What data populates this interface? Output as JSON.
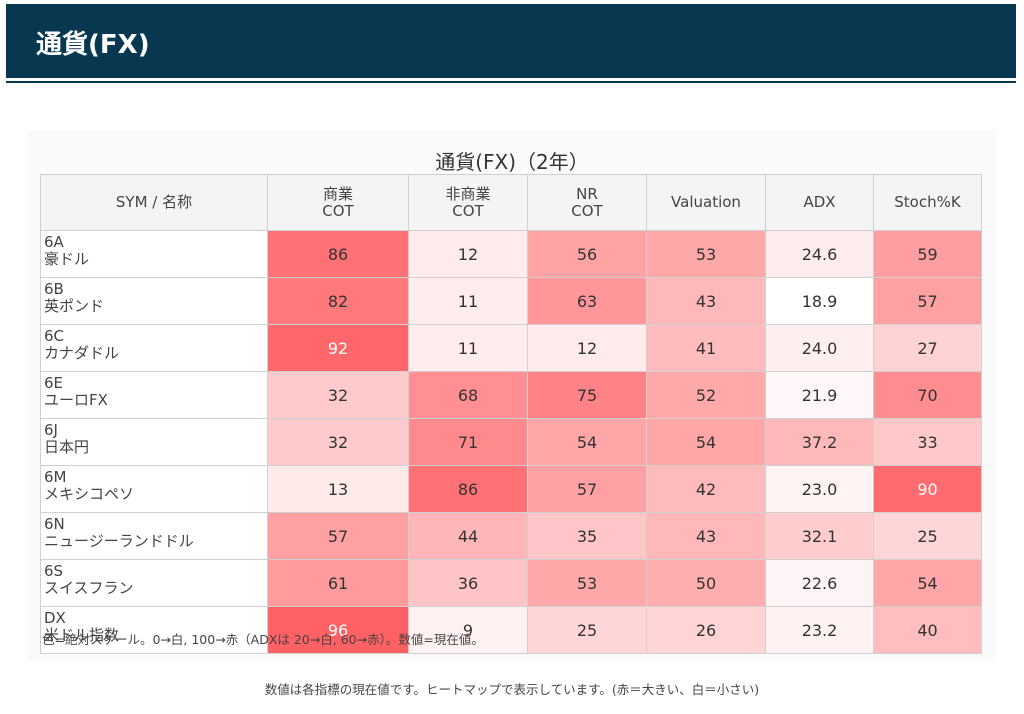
{
  "header": {
    "title": "通貨(FX)"
  },
  "chart_data": {
    "type": "heatmap",
    "title": "通貨(FX)（2年）",
    "columns": [
      "SYM / 名称",
      "商業\nCOT",
      "非商業\nCOT",
      "NR\nCOT",
      "Valuation",
      "ADX",
      "Stoch%K"
    ],
    "rows": [
      {
        "sym": "6A",
        "name": "豪ドル",
        "values": [
          "86",
          "12",
          "56",
          "53",
          "24.6",
          "59"
        ]
      },
      {
        "sym": "6B",
        "name": "英ポンド",
        "values": [
          "82",
          "11",
          "63",
          "43",
          "18.9",
          "57"
        ]
      },
      {
        "sym": "6C",
        "name": "カナダドル",
        "values": [
          "92",
          "11",
          "12",
          "41",
          "24.0",
          "27"
        ]
      },
      {
        "sym": "6E",
        "name": "ユーロFX",
        "values": [
          "32",
          "68",
          "75",
          "52",
          "21.9",
          "70"
        ]
      },
      {
        "sym": "6J",
        "name": "日本円",
        "values": [
          "32",
          "71",
          "54",
          "54",
          "37.2",
          "33"
        ]
      },
      {
        "sym": "6M",
        "name": "メキシコペソ",
        "values": [
          "13",
          "86",
          "57",
          "42",
          "23.0",
          "90"
        ]
      },
      {
        "sym": "6N",
        "name": "ニュージーランドドル",
        "values": [
          "57",
          "44",
          "35",
          "43",
          "32.1",
          "25"
        ]
      },
      {
        "sym": "6S",
        "name": "スイスフラン",
        "values": [
          "61",
          "36",
          "53",
          "50",
          "22.6",
          "54"
        ]
      },
      {
        "sym": "DX",
        "name": "米ドル指数",
        "values": [
          "96",
          "9",
          "25",
          "26",
          "23.2",
          "40"
        ]
      }
    ],
    "color_scale": {
      "low_color": "#ffffff",
      "high_color": "#ff5a5e",
      "min": 0,
      "max": 100,
      "adx_min": 20,
      "adx_max": 60
    }
  },
  "note": "色=絶対スケール。0→白, 100→赤（ADXは 20→白, 60→赤）。数値=現在値。",
  "footer": "数値は各指標の現在値です。ヒートマップで表示しています。(赤＝大きい、白＝小さい)"
}
